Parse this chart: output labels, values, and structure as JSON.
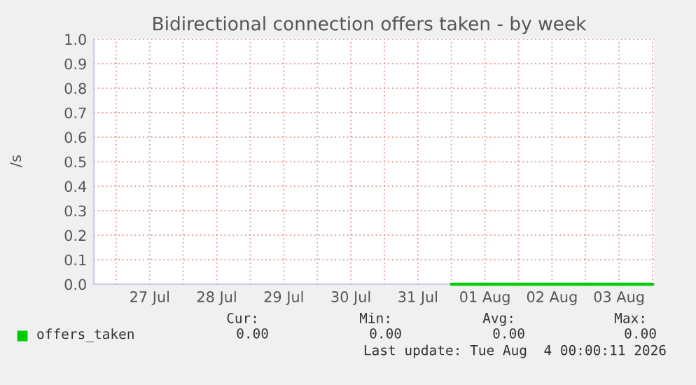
{
  "chart_data": {
    "type": "line",
    "title": "Bidirectional connection offers taken - by week",
    "ylabel": "/s",
    "xlim": [
      "2026-07-26T16:00",
      "2026-08-04T00:30"
    ],
    "xticks": [
      {
        "value": "2026-07-27T00:00",
        "label": null
      },
      {
        "value": "2026-07-27T12:00",
        "label": "27 Jul"
      },
      {
        "value": "2026-07-28T00:00",
        "label": null
      },
      {
        "value": "2026-07-28T12:00",
        "label": "28 Jul"
      },
      {
        "value": "2026-07-29T00:00",
        "label": null
      },
      {
        "value": "2026-07-29T12:00",
        "label": "29 Jul"
      },
      {
        "value": "2026-07-30T00:00",
        "label": null
      },
      {
        "value": "2026-07-30T12:00",
        "label": "30 Jul"
      },
      {
        "value": "2026-07-31T00:00",
        "label": null
      },
      {
        "value": "2026-07-31T12:00",
        "label": "31 Jul"
      },
      {
        "value": "2026-08-01T00:00",
        "label": null
      },
      {
        "value": "2026-08-01T12:00",
        "label": "01 Aug"
      },
      {
        "value": "2026-08-02T00:00",
        "label": null
      },
      {
        "value": "2026-08-02T12:00",
        "label": "02 Aug"
      },
      {
        "value": "2026-08-03T00:00",
        "label": null
      },
      {
        "value": "2026-08-03T12:00",
        "label": "03 Aug"
      },
      {
        "value": "2026-08-04T00:00",
        "label": null
      }
    ],
    "ylim": [
      0,
      1.0
    ],
    "yticks": [
      {
        "value": 0,
        "label": "0.0"
      },
      {
        "value": 0.1,
        "label": "0.1"
      },
      {
        "value": 0.2,
        "label": "0.2"
      },
      {
        "value": 0.3,
        "label": "0.3"
      },
      {
        "value": 0.4,
        "label": "0.4"
      },
      {
        "value": 0.5,
        "label": "0.5"
      },
      {
        "value": 0.6,
        "label": "0.6"
      },
      {
        "value": 0.7,
        "label": "0.7"
      },
      {
        "value": 0.8,
        "label": "0.8"
      },
      {
        "value": 0.9,
        "label": "0.9"
      },
      {
        "value": 1.0,
        "label": "1.0"
      }
    ],
    "grid": true,
    "legend": "bottom",
    "series": [
      {
        "name": "offers_taken",
        "color": "#00cc00",
        "x": [
          "2026-08-01T00:00",
          "2026-08-04T00:00"
        ],
        "values": [
          0,
          0
        ]
      }
    ],
    "annotations": [
      "Cur:",
      "Min:",
      "Avg:",
      "Max:",
      "0.00",
      "0.00",
      "0.00",
      "0.00",
      "Last update: Tue Aug  4 00:00:11 2026"
    ]
  }
}
